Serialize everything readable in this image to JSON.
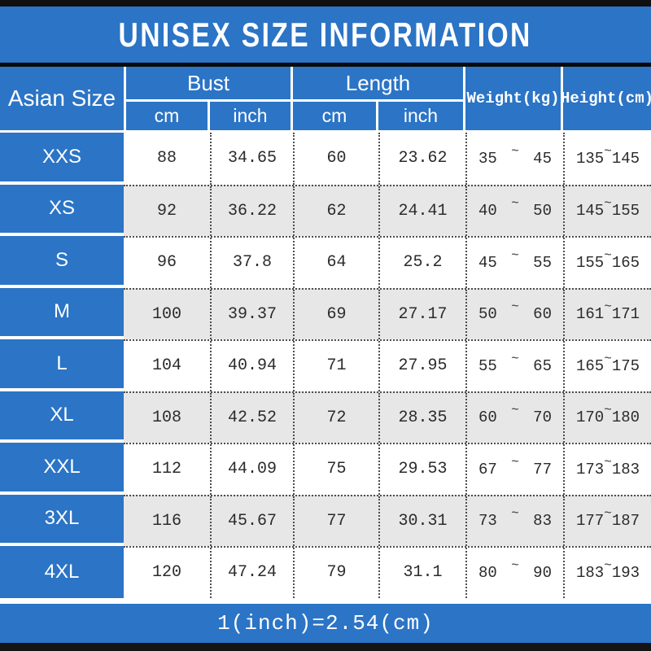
{
  "title": "UNISEX SIZE INFORMATION",
  "header": {
    "size_col": "Asian Size",
    "bust": "Bust",
    "length": "Length",
    "bust_cm": "cm",
    "bust_inch": "inch",
    "length_cm": "cm",
    "length_inch": "inch",
    "weight": "Weight(kg)",
    "height": "Height(cm)"
  },
  "symbols": {
    "tilde": "~"
  },
  "footer_note": "1(inch)=2.54(cm)",
  "colors": {
    "blue": "#2b74c6",
    "alt_row_gray": "#e7e7e7",
    "dotted_border": "#4d4d4d",
    "bar_black": "#101010",
    "text_white": "#ffffff",
    "text_dark": "#2b2b2b"
  },
  "chart_data": {
    "type": "table",
    "title": "UNISEX SIZE INFORMATION",
    "columns": [
      "Asian Size",
      "Bust cm",
      "Bust inch",
      "Length cm",
      "Length inch",
      "Weight(kg) min",
      "Weight(kg) max",
      "Height(cm) min",
      "Height(cm) max"
    ],
    "rows": [
      [
        "XXS",
        "88",
        "34.65",
        "60",
        "23.62",
        "35",
        "45",
        "135",
        "145"
      ],
      [
        "XS",
        "92",
        "36.22",
        "62",
        "24.41",
        "40",
        "50",
        "145",
        "155"
      ],
      [
        "S",
        "96",
        "37.8",
        "64",
        "25.2",
        "45",
        "55",
        "155",
        "165"
      ],
      [
        "M",
        "100",
        "39.37",
        "69",
        "27.17",
        "50",
        "60",
        "161",
        "171"
      ],
      [
        "L",
        "104",
        "40.94",
        "71",
        "27.95",
        "55",
        "65",
        "165",
        "175"
      ],
      [
        "XL",
        "108",
        "42.52",
        "72",
        "28.35",
        "60",
        "70",
        "170",
        "180"
      ],
      [
        "XXL",
        "112",
        "44.09",
        "75",
        "29.53",
        "67",
        "77",
        "173",
        "183"
      ],
      [
        "3XL",
        "116",
        "45.67",
        "77",
        "30.31",
        "73",
        "83",
        "177",
        "187"
      ],
      [
        "4XL",
        "120",
        "47.24",
        "79",
        "31.1",
        "80",
        "90",
        "183",
        "193"
      ]
    ],
    "footnote": "1(inch)=2.54(cm)",
    "layout": {
      "alternating_row_shading": true,
      "row_separator": "dotted",
      "header_background": "blue"
    }
  }
}
